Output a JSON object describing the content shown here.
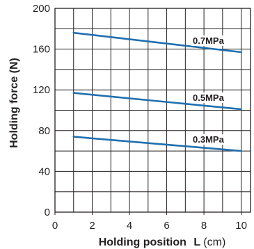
{
  "chart_data": {
    "type": "line",
    "xlabel": "Holding position",
    "xlabel_symbol": "L",
    "xlabel_unit": "(cm)",
    "ylabel": "Holding force  (N)",
    "xlim": [
      0,
      10.5
    ],
    "ylim": [
      0,
      200
    ],
    "x_ticks": [
      0,
      2,
      4,
      6,
      8,
      10
    ],
    "y_ticks": [
      0,
      40,
      80,
      120,
      160,
      200
    ],
    "x_grid_step": 1,
    "y_grid_step": 20,
    "grid": true,
    "legend": "none",
    "series_color": "#1f6fb0",
    "grid_color": "#231f20",
    "series": [
      {
        "name": "0.7MPa",
        "x": [
          1,
          10
        ],
        "y": [
          176,
          157
        ]
      },
      {
        "name": "0.5MPa",
        "x": [
          1,
          10
        ],
        "y": [
          117,
          101
        ]
      },
      {
        "name": "0.3MPa",
        "x": [
          1,
          10
        ],
        "y": [
          74,
          60
        ]
      }
    ]
  }
}
